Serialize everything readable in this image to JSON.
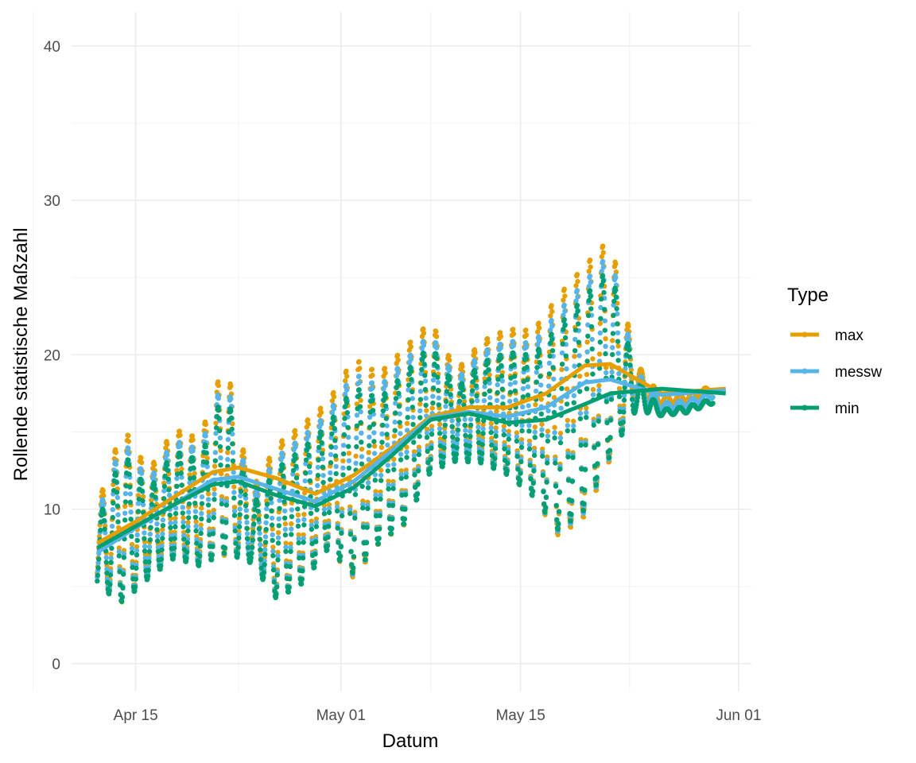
{
  "chart_data": {
    "type": "line",
    "xlabel": "Datum",
    "ylabel": "Rollende statistische Maßzahl",
    "x_ticks": [
      "Apr 15",
      "May 01",
      "May 15",
      "Jun 01"
    ],
    "y_ticks": [
      "0",
      "10",
      "20",
      "30",
      "40"
    ],
    "x_range": [
      "2024-04-10",
      "2024-06-02"
    ],
    "ylim": [
      -1.8,
      42.2
    ],
    "grid": true,
    "legend": {
      "title": "Type",
      "placement": "right"
    },
    "series": [
      {
        "name": "max",
        "color": "#E69F00",
        "points": [
          {
            "x": "2024-04-12",
            "y": 7.8
          },
          {
            "x": "2024-04-15",
            "y": 9.2
          },
          {
            "x": "2024-04-18",
            "y": 10.8
          },
          {
            "x": "2024-04-21",
            "y": 12.4
          },
          {
            "x": "2024-04-23",
            "y": 12.7
          },
          {
            "x": "2024-04-26",
            "y": 12.0
          },
          {
            "x": "2024-04-29",
            "y": 11.0
          },
          {
            "x": "2024-05-02",
            "y": 12.2
          },
          {
            "x": "2024-05-05",
            "y": 14.0
          },
          {
            "x": "2024-05-08",
            "y": 16.0
          },
          {
            "x": "2024-05-11",
            "y": 16.6
          },
          {
            "x": "2024-05-14",
            "y": 16.6
          },
          {
            "x": "2024-05-17",
            "y": 17.5
          },
          {
            "x": "2024-05-20",
            "y": 19.3
          },
          {
            "x": "2024-05-22",
            "y": 19.4
          },
          {
            "x": "2024-05-26",
            "y": 17.5
          },
          {
            "x": "2024-05-31",
            "y": 17.8
          }
        ],
        "fluct": [
          {
            "x": "2024-04-12",
            "hi": 10.2,
            "lo": 5.4
          },
          {
            "x": "2024-04-14",
            "hi": 15.4,
            "lo": 3.9
          },
          {
            "x": "2024-04-16",
            "hi": 12.5,
            "lo": 5.8
          },
          {
            "x": "2024-04-18",
            "hi": 15.2,
            "lo": 7.0
          },
          {
            "x": "2024-04-20",
            "hi": 14.6,
            "lo": 6.5
          },
          {
            "x": "2024-04-22",
            "hi": 19.8,
            "lo": 7.0
          },
          {
            "x": "2024-04-24",
            "hi": 11.2,
            "lo": 7.0
          },
          {
            "x": "2024-04-26",
            "hi": 14.2,
            "lo": 4.2
          },
          {
            "x": "2024-04-28",
            "hi": 15.5,
            "lo": 5.2
          },
          {
            "x": "2024-04-30",
            "hi": 17.0,
            "lo": 7.5
          },
          {
            "x": "2024-05-02",
            "hi": 19.8,
            "lo": 5.5
          },
          {
            "x": "2024-05-04",
            "hi": 18.8,
            "lo": 7.8
          },
          {
            "x": "2024-05-06",
            "hi": 20.5,
            "lo": 9.0
          },
          {
            "x": "2024-05-08",
            "hi": 22.2,
            "lo": 12.5
          },
          {
            "x": "2024-05-10",
            "hi": 19.0,
            "lo": 13.5
          },
          {
            "x": "2024-05-12",
            "hi": 20.9,
            "lo": 13.2
          },
          {
            "x": "2024-05-14",
            "hi": 21.7,
            "lo": 12.3
          },
          {
            "x": "2024-05-16",
            "hi": 21.6,
            "lo": 10.8
          },
          {
            "x": "2024-05-18",
            "hi": 23.9,
            "lo": 8.2
          },
          {
            "x": "2024-05-20",
            "hi": 25.8,
            "lo": 9.5
          },
          {
            "x": "2024-05-22",
            "hi": 27.6,
            "lo": 13.2
          },
          {
            "x": "2024-05-24",
            "hi": 19.5,
            "lo": 17.0
          },
          {
            "x": "2024-05-26",
            "hi": 17.3,
            "lo": 16.8
          },
          {
            "x": "2024-05-28",
            "hi": 17.5,
            "lo": 17.0
          },
          {
            "x": "2024-05-30",
            "hi": 18.0,
            "lo": 17.6
          }
        ]
      },
      {
        "name": "messw",
        "color": "#56B4E9",
        "points": [
          {
            "x": "2024-04-12",
            "y": 7.2
          },
          {
            "x": "2024-04-15",
            "y": 8.8
          },
          {
            "x": "2024-04-18",
            "y": 10.3
          },
          {
            "x": "2024-04-21",
            "y": 11.9
          },
          {
            "x": "2024-04-23",
            "y": 12.1
          },
          {
            "x": "2024-04-26",
            "y": 11.3
          },
          {
            "x": "2024-04-29",
            "y": 10.5
          },
          {
            "x": "2024-05-02",
            "y": 11.8
          },
          {
            "x": "2024-05-05",
            "y": 13.8
          },
          {
            "x": "2024-05-08",
            "y": 15.9
          },
          {
            "x": "2024-05-11",
            "y": 16.3
          },
          {
            "x": "2024-05-14",
            "y": 16.0
          },
          {
            "x": "2024-05-17",
            "y": 16.6
          },
          {
            "x": "2024-05-20",
            "y": 18.2
          },
          {
            "x": "2024-05-22",
            "y": 18.4
          },
          {
            "x": "2024-05-26",
            "y": 17.4
          },
          {
            "x": "2024-05-31",
            "y": 17.7
          }
        ]
      },
      {
        "name": "min",
        "color": "#009E73",
        "points": [
          {
            "x": "2024-04-12",
            "y": 7.5
          },
          {
            "x": "2024-04-15",
            "y": 8.9
          },
          {
            "x": "2024-04-18",
            "y": 10.3
          },
          {
            "x": "2024-04-21",
            "y": 11.6
          },
          {
            "x": "2024-04-23",
            "y": 11.8
          },
          {
            "x": "2024-04-26",
            "y": 10.9
          },
          {
            "x": "2024-04-29",
            "y": 10.2
          },
          {
            "x": "2024-05-02",
            "y": 11.4
          },
          {
            "x": "2024-05-05",
            "y": 13.5
          },
          {
            "x": "2024-05-08",
            "y": 15.8
          },
          {
            "x": "2024-05-11",
            "y": 16.2
          },
          {
            "x": "2024-05-14",
            "y": 15.6
          },
          {
            "x": "2024-05-17",
            "y": 15.8
          },
          {
            "x": "2024-05-20",
            "y": 16.8
          },
          {
            "x": "2024-05-22",
            "y": 17.5
          },
          {
            "x": "2024-05-26",
            "y": 17.8
          },
          {
            "x": "2024-05-31",
            "y": 17.5
          }
        ]
      }
    ]
  }
}
